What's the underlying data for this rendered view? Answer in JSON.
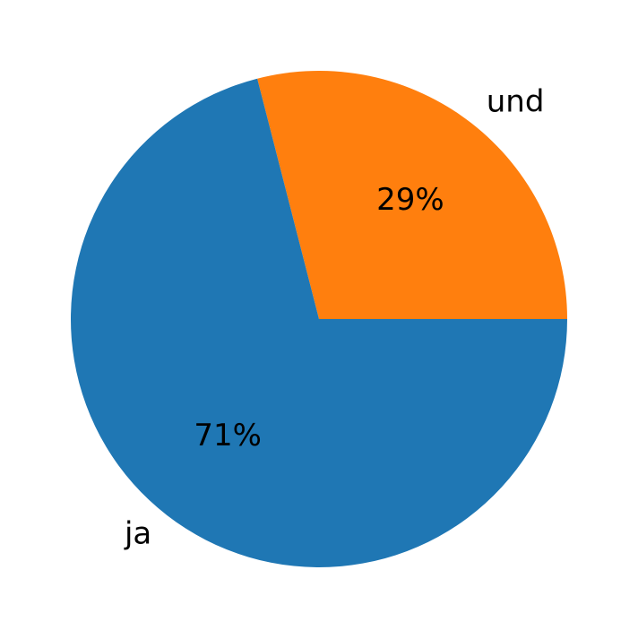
{
  "chart_data": {
    "type": "pie",
    "title": "",
    "start_angle_deg": 0,
    "direction": "counterclockwise",
    "slices": [
      {
        "label": "und",
        "value": 29,
        "pct_label": "29%",
        "color": "#ff7f0e"
      },
      {
        "label": "ja",
        "value": 71,
        "pct_label": "71%",
        "color": "#1f77b4"
      }
    ]
  }
}
